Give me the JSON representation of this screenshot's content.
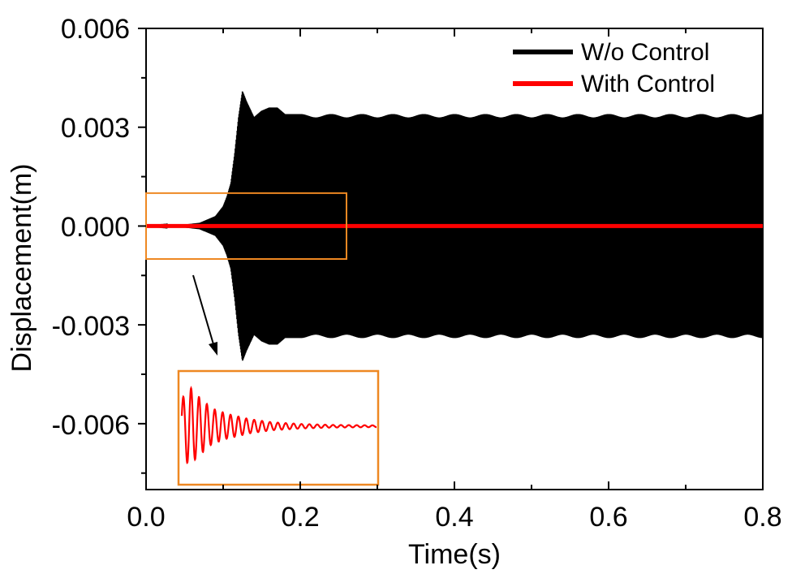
{
  "chart_data": {
    "type": "line",
    "xlabel": "Time(s)",
    "ylabel": "Displacement(m)",
    "xlim": [
      0.0,
      0.8
    ],
    "ylim": [
      -0.008,
      0.006
    ],
    "x_ticks": [
      0.0,
      0.2,
      0.4,
      0.6,
      0.8
    ],
    "x_tick_labels": [
      "0.0",
      "0.2",
      "0.4",
      "0.6",
      "0.8"
    ],
    "y_ticks": [
      0.006,
      0.003,
      0.0,
      -0.003,
      -0.006
    ],
    "y_tick_labels": [
      "0.006",
      "0.003",
      "0.000",
      "-0.003",
      "-0.006"
    ],
    "grid": false,
    "legend_position": "top-right",
    "series": [
      {
        "name": "W/o Control",
        "color": "#000000",
        "envelope": {
          "t": [
            0.0,
            0.04,
            0.07,
            0.09,
            0.1,
            0.105,
            0.11,
            0.115,
            0.12,
            0.125,
            0.13,
            0.14,
            0.15,
            0.16,
            0.17,
            0.18,
            0.2,
            0.25,
            0.8
          ],
          "amp": [
            0.0,
            2e-05,
            0.0001,
            0.0003,
            0.0006,
            0.0009,
            0.0013,
            0.0022,
            0.0033,
            0.0041,
            0.0038,
            0.0033,
            0.0035,
            0.0036,
            0.0036,
            0.0034,
            0.0034,
            0.0034,
            0.0034
          ]
        }
      },
      {
        "name": "With Control",
        "color": "#ff0000",
        "envelope": {
          "t": [
            0.0,
            0.8
          ],
          "amp": [
            4e-05,
            4e-05
          ]
        }
      }
    ],
    "zoom_box": {
      "t_range": [
        0.0,
        0.26
      ],
      "y_range": [
        -0.001,
        0.001
      ]
    },
    "inset": {
      "series": "With Control",
      "description_envelope": {
        "t": [
          0.0,
          0.01,
          0.02,
          0.04,
          0.06,
          0.09,
          0.12,
          0.16,
          0.2,
          0.26
        ],
        "amp": [
          0.6,
          0.9,
          0.7,
          0.4,
          0.28,
          0.16,
          0.09,
          0.05,
          0.03,
          0.02
        ]
      }
    }
  },
  "colors": {
    "highlight": "#ee8822",
    "axis": "#000000"
  }
}
